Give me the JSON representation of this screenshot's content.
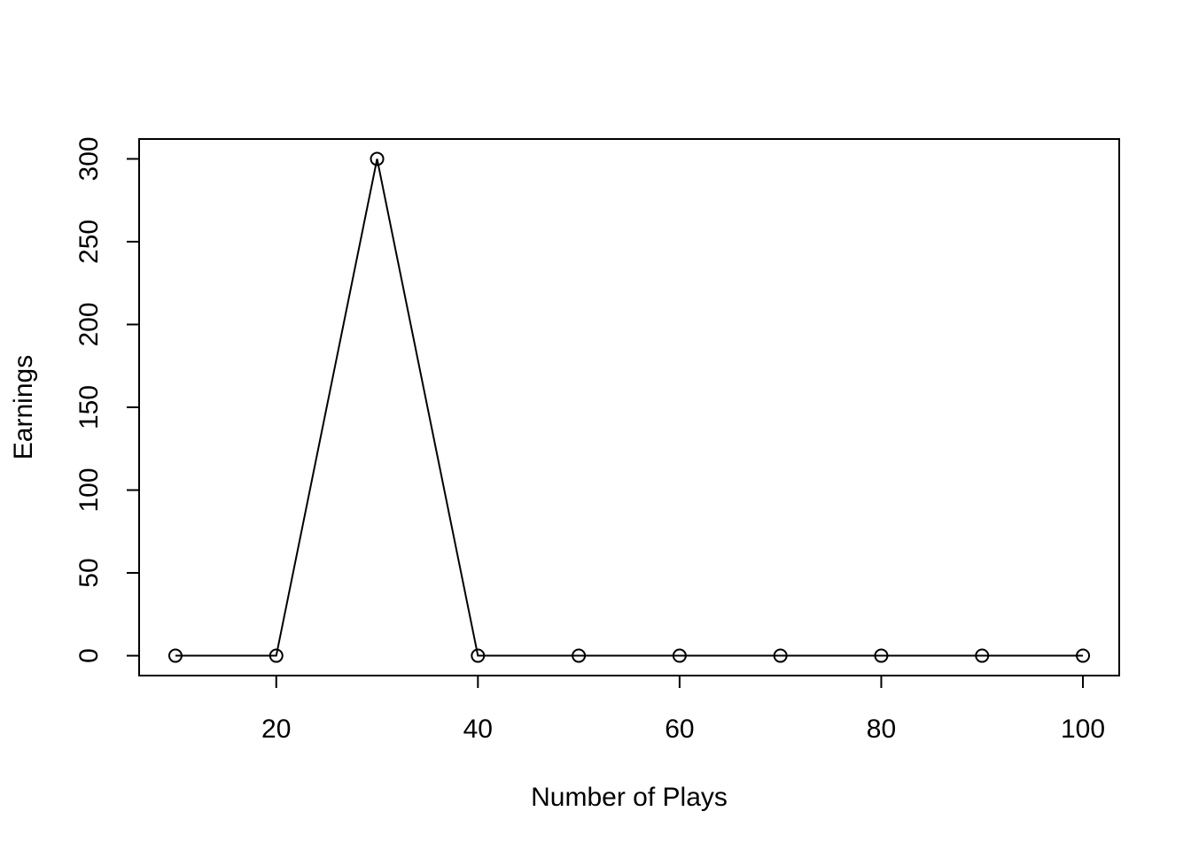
{
  "chart_data": {
    "type": "line",
    "title": "",
    "xlabel": "Number of Plays",
    "ylabel": "Earnings",
    "x": [
      10,
      20,
      30,
      40,
      50,
      60,
      70,
      80,
      90,
      100
    ],
    "series": [
      {
        "values": [
          0,
          0,
          300,
          0,
          0,
          0,
          0,
          0,
          0,
          0
        ]
      }
    ],
    "xlim": [
      6.4,
      103.6
    ],
    "ylim": [
      -12,
      312
    ],
    "x_ticks": [
      20,
      40,
      60,
      80,
      100
    ],
    "y_ticks": [
      0,
      50,
      100,
      150,
      200,
      250,
      300
    ],
    "grid": false,
    "legend": "none",
    "marker": "open-circle",
    "colors": {
      "line": "#000000",
      "background": "#ffffff"
    }
  }
}
